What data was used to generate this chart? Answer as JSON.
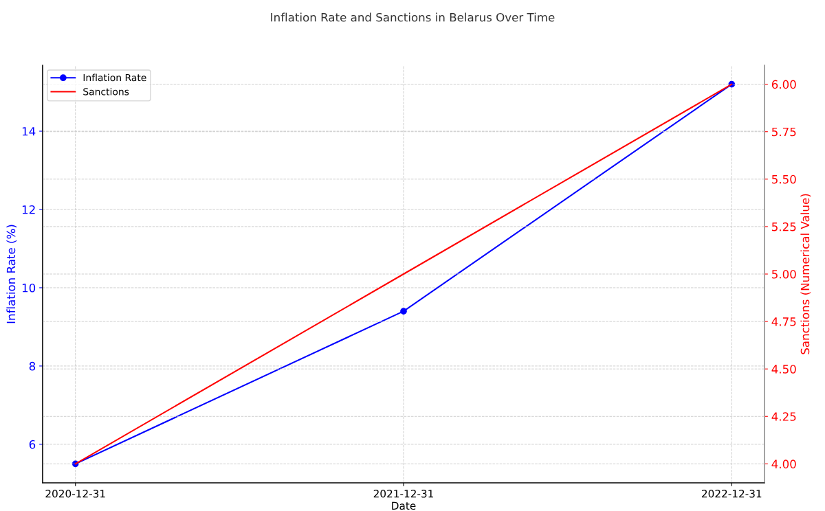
{
  "chart_data": {
    "type": "line",
    "title": "Inflation Rate and Sanctions in Belarus Over Time",
    "xlabel": "Date",
    "ylabel": "Inflation Rate (%)",
    "y2label": "Sanctions (Numerical Value)",
    "categories": [
      "2020-12-31",
      "2021-12-31",
      "2022-12-31"
    ],
    "series": [
      {
        "name": "Inflation Rate",
        "color": "#0000ff",
        "values": [
          5.5,
          9.4,
          15.2
        ],
        "marker": "circle"
      },
      {
        "name": "Sanctions",
        "color": "#ff0000",
        "values": [
          4.0,
          5.0,
          6.0
        ],
        "axis": "y2",
        "marker": "none"
      }
    ],
    "ylim": [
      5.015,
      15.685
    ],
    "yticks": [
      6,
      8,
      10,
      12,
      14
    ],
    "y2lim": [
      3.9,
      6.1
    ],
    "y2ticks": [
      {
        "value": 4.0,
        "label": "4.00"
      },
      {
        "value": 4.25,
        "label": "4.25"
      },
      {
        "value": 4.5,
        "label": "4.50"
      },
      {
        "value": 4.75,
        "label": "4.75"
      },
      {
        "value": 5.0,
        "label": "5.00"
      },
      {
        "value": 5.25,
        "label": "5.25"
      },
      {
        "value": 5.5,
        "label": "5.50"
      },
      {
        "value": 5.75,
        "label": "5.75"
      },
      {
        "value": 6.0,
        "label": "6.00"
      }
    ],
    "grid": true,
    "legend": "top left",
    "line_style": "solid"
  }
}
